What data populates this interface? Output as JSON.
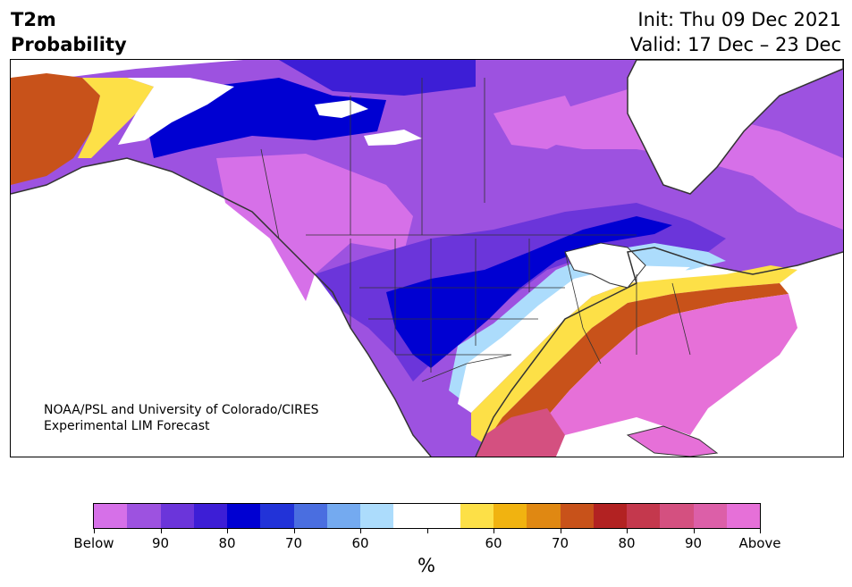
{
  "title": {
    "line1": "T2m",
    "line2": "Probability"
  },
  "init_text": "Init: Thu 09 Dec 2021",
  "valid_text": "Valid: 17 Dec – 23 Dec",
  "credit": {
    "line1": "NOAA/PSL and University of Colorado/CIRES",
    "line2": "Experimental LIM Forecast"
  },
  "colorbar": {
    "colors": [
      "#d670e8",
      "#9d52e0",
      "#6b35da",
      "#3d1ed6",
      "#0000d2",
      "#2233d8",
      "#4a6ee0",
      "#74aaf0",
      "#acdcfc",
      "#ffffff",
      "#ffffff",
      "#fde047",
      "#f1b310",
      "#e08812",
      "#c8521a",
      "#b22222",
      "#c4384d",
      "#d45080",
      "#dc5fa8",
      "#e670d8"
    ],
    "labels": [
      "Below",
      "90",
      "80",
      "70",
      "60",
      "",
      "60",
      "70",
      "80",
      "90",
      "Above"
    ],
    "unit": "%"
  },
  "map": {
    "projection": "North America",
    "region_colors": {
      "cold_extreme": "#0000d2",
      "warm_extreme": "#e670d8",
      "alaska_warm": "#c8521a"
    }
  }
}
